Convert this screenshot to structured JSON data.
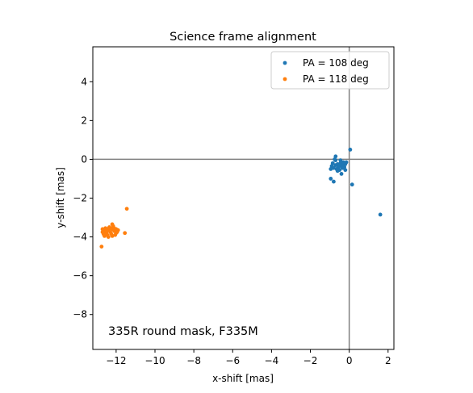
{
  "chart_data": {
    "type": "scatter",
    "title": "Science frame alignment",
    "xlabel": "x-shift [mas]",
    "ylabel": "y-shift [mas]",
    "xlim": [
      -13.2,
      2.3
    ],
    "ylim": [
      -9.8,
      5.8
    ],
    "xticks": [
      -12,
      -10,
      -8,
      -6,
      -4,
      -2,
      0,
      2
    ],
    "yticks": [
      -8,
      -6,
      -4,
      -2,
      0,
      2,
      4
    ],
    "xtick_labels": [
      "−12",
      "−10",
      "−8",
      "−6",
      "−4",
      "−2",
      "0",
      "2"
    ],
    "ytick_labels": [
      "−8",
      "−6",
      "−4",
      "−2",
      "0",
      "2",
      "4"
    ],
    "reference_lines": {
      "x": 0,
      "y": 0,
      "color": "#808080"
    },
    "legend_position": "upper right",
    "annotation": "335R round mask, F335M",
    "series": [
      {
        "name": "PA = 108 deg",
        "color": "#1f77b4",
        "points": [
          [
            -0.7,
            0.15
          ],
          [
            -0.75,
            0.0
          ],
          [
            -0.85,
            -0.2
          ],
          [
            -0.9,
            -0.35
          ],
          [
            -0.8,
            -0.45
          ],
          [
            -0.7,
            -0.3
          ],
          [
            -0.6,
            -0.25
          ],
          [
            -0.55,
            -0.4
          ],
          [
            -0.5,
            -0.3
          ],
          [
            -0.45,
            -0.2
          ],
          [
            -0.4,
            -0.35
          ],
          [
            -0.35,
            -0.45
          ],
          [
            -0.3,
            -0.3
          ],
          [
            -0.25,
            -0.4
          ],
          [
            -0.2,
            -0.25
          ],
          [
            -0.15,
            -0.15
          ],
          [
            -0.3,
            -0.15
          ],
          [
            -0.65,
            -0.5
          ],
          [
            -0.5,
            -0.55
          ],
          [
            -0.4,
            -0.75
          ],
          [
            -0.6,
            -0.6
          ],
          [
            -0.95,
            -0.5
          ],
          [
            -0.2,
            -0.55
          ],
          [
            -0.45,
            -0.05
          ],
          [
            -0.7,
            -0.05
          ],
          [
            0.05,
            0.5
          ],
          [
            -0.95,
            -1.0
          ],
          [
            -0.8,
            -1.15
          ],
          [
            0.15,
            -1.3
          ],
          [
            1.6,
            -2.85
          ]
        ]
      },
      {
        "name": "PA = 118 deg",
        "color": "#ff7f0e",
        "points": [
          [
            -12.7,
            -3.6
          ],
          [
            -12.6,
            -3.7
          ],
          [
            -12.5,
            -3.8
          ],
          [
            -12.4,
            -3.65
          ],
          [
            -12.3,
            -3.75
          ],
          [
            -12.2,
            -3.6
          ],
          [
            -12.1,
            -3.7
          ],
          [
            -12.0,
            -3.8
          ],
          [
            -11.9,
            -3.65
          ],
          [
            -12.65,
            -3.85
          ],
          [
            -12.55,
            -3.55
          ],
          [
            -12.45,
            -3.9
          ],
          [
            -12.35,
            -3.5
          ],
          [
            -12.25,
            -3.85
          ],
          [
            -12.15,
            -3.45
          ],
          [
            -12.05,
            -3.9
          ],
          [
            -11.95,
            -3.75
          ],
          [
            -12.6,
            -3.95
          ],
          [
            -12.4,
            -4.0
          ],
          [
            -12.2,
            -3.95
          ],
          [
            -12.3,
            -3.55
          ],
          [
            -12.5,
            -3.7
          ],
          [
            -12.1,
            -3.55
          ],
          [
            -12.2,
            -3.35
          ],
          [
            -12.7,
            -3.75
          ],
          [
            -11.55,
            -3.8
          ],
          [
            -11.45,
            -2.55
          ],
          [
            -12.75,
            -4.5
          ],
          [
            -12.0,
            -3.6
          ],
          [
            -12.45,
            -3.6
          ]
        ]
      }
    ]
  }
}
